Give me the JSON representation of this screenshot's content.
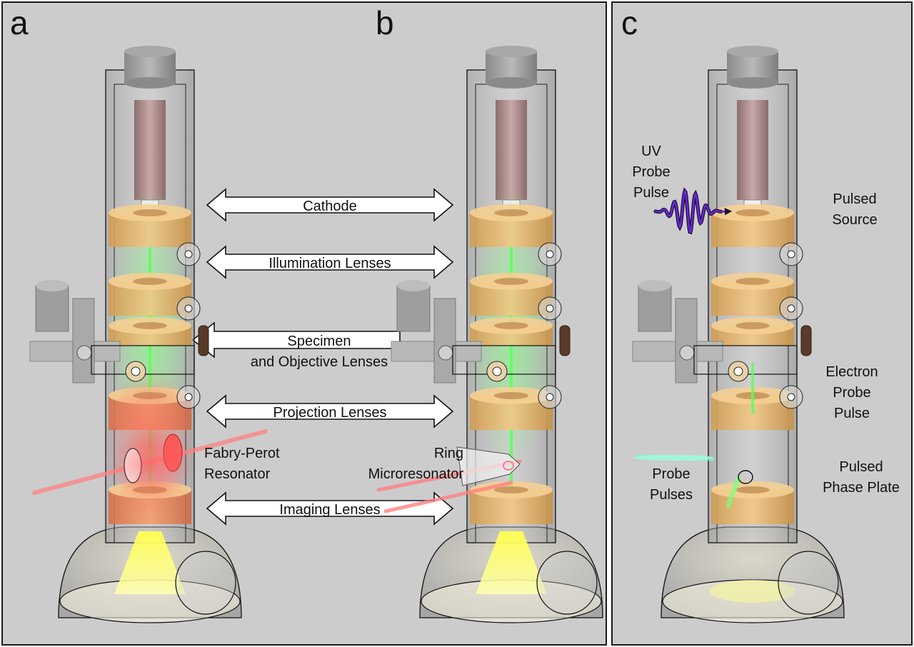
{
  "panels": {
    "a": "a",
    "b": "b",
    "c": "c"
  },
  "arrows": {
    "cathode": "Cathode",
    "illumination": "Illumination Lenses",
    "specimen_line1": "Specimen",
    "specimen_line2": "and Objective Lenses",
    "projection": "Projection Lenses",
    "imaging": "Imaging Lenses"
  },
  "panel_a": {
    "resonator_line1": "Fabry-Perot",
    "resonator_line2": "Resonator"
  },
  "panel_b": {
    "resonator_line1": "Ring",
    "resonator_line2": "Microresonator"
  },
  "panel_c": {
    "uv_line1": "UV",
    "uv_line2": "Probe",
    "uv_line3": "Pulse",
    "source_line1": "Pulsed",
    "source_line2": "Source",
    "electron_line1": "Electron",
    "electron_line2": "Probe",
    "electron_line3": "Pulse",
    "probe_line1": "Probe",
    "probe_line2": "Pulses",
    "phase_line1": "Pulsed",
    "phase_line2": "Phase Plate"
  },
  "colors": {
    "background": "#cccccc",
    "lens": "#e8b86a",
    "beam": "#5cff5c",
    "laser": "#ff7070",
    "uv_pulse": "#5a1fb0",
    "cone": "#ffff66"
  }
}
